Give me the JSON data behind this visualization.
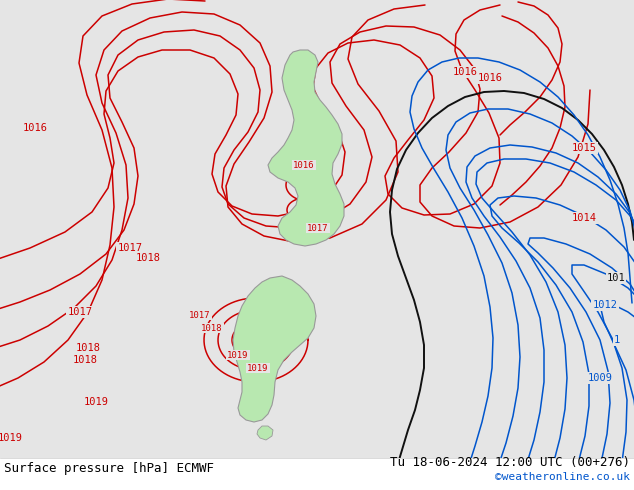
{
  "title_left": "Surface pressure [hPa] ECMWF",
  "title_right": "Tu 18-06-2024 12:00 UTC (00+276)",
  "credit": "©weatheronline.co.uk",
  "bg_color": "#e5e5e5",
  "land_color": "#b8e8b0",
  "coast_color": "#999999",
  "rc": "#cc0000",
  "bc": "#0055cc",
  "bkc": "#111111",
  "lw": 1.1,
  "fs": 7.5,
  "title_fs": 9,
  "credit_fs": 8,
  "figsize": [
    6.34,
    4.9
  ],
  "dpi": 100
}
